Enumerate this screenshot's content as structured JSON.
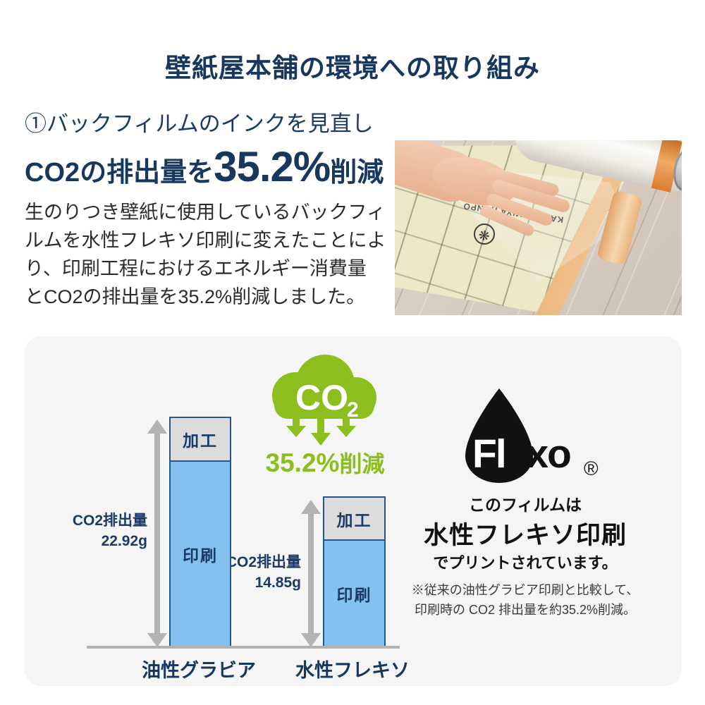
{
  "title": "壁紙屋本舗の環境への取り組み",
  "intro": {
    "heading": "①バックフィルムのインクを見直し",
    "highlight_prefix": "CO2の排出量を",
    "highlight_value": "35.2%",
    "highlight_suffix": "削減",
    "body_lines": [
      "生のりつき壁紙に使用しているバックフィ",
      "ルムを水性フレキソ印刷に変えたことによ",
      "り、印刷工程におけるエネルギー消費量",
      "とCO2の排出量を35.2%削減しました。"
    ]
  },
  "photo": {
    "film_text": "KABEGAMIYA HONPO"
  },
  "chart_data": {
    "type": "bar",
    "stacked": true,
    "categories": [
      "油性グラビア",
      "水性フレキソ"
    ],
    "series": [
      {
        "name": "印刷",
        "values": [
          18.52,
          10.55
        ],
        "color": "#85c1ee"
      },
      {
        "name": "加工",
        "values": [
          4.4,
          4.3
        ],
        "color": "#dcdcdc"
      }
    ],
    "totals": [
      22.92,
      14.85
    ],
    "unit": "g",
    "title": "",
    "xlabel": "",
    "ylabel": "",
    "grid": false,
    "legend_position": "none",
    "annotations": [
      "CO2排出量 22.92g",
      "CO2排出量 14.85g",
      "35.2%削減"
    ]
  },
  "panel": {
    "co2_icon_text": "CO",
    "co2_icon_sub": "2",
    "reduction_value": "35.2%",
    "reduction_suffix": "削減",
    "bars": [
      {
        "amount_line1": "CO2排出量",
        "amount_line2": "22.92g"
      },
      {
        "amount_line1": "CO2排出量",
        "amount_line2": "14.85g"
      }
    ],
    "flexo": {
      "word_white": "Fl",
      "word_black": "exo",
      "registered": "®",
      "line1": "このフィルムは",
      "line2": "水性フレキソ印刷",
      "line3": "でプリントされています。",
      "note_line1": "※従来の油性グラビア印刷と比較して、",
      "note_line2": "印刷時の CO2 排出量を約35.2%削減。"
    }
  },
  "colors": {
    "navy": "#17375e",
    "green": "#8cbe1e",
    "bar_blue": "#85c1ee",
    "bar_gray": "#dcdcdc",
    "bar_border": "#25578f",
    "axis_gray": "#b3b3b3",
    "panel_bg": "#f5f5f5"
  }
}
